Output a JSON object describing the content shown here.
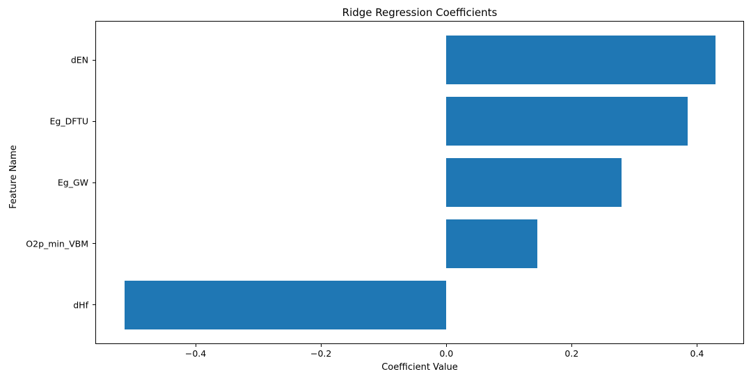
{
  "chart_data": {
    "type": "bar",
    "orientation": "horizontal",
    "title": "Ridge Regression Coefficients",
    "xlabel": "Coefficient Value",
    "ylabel": "Feature Name",
    "categories": [
      "dEN",
      "Eg_DFTU",
      "Eg_GW",
      "O2p_min_VBM",
      "dHf"
    ],
    "values": [
      0.43,
      0.385,
      0.28,
      0.145,
      -0.513
    ],
    "xlim": [
      -0.56,
      0.475
    ],
    "x_ticks": [
      -0.4,
      -0.2,
      0.0,
      0.2,
      0.4
    ],
    "x_tick_labels": [
      "−0.4",
      "−0.2",
      "0.0",
      "0.2",
      "0.4"
    ],
    "bar_color": "#1f77b4",
    "axis_color": "#000000",
    "grid": false,
    "legend": null
  }
}
